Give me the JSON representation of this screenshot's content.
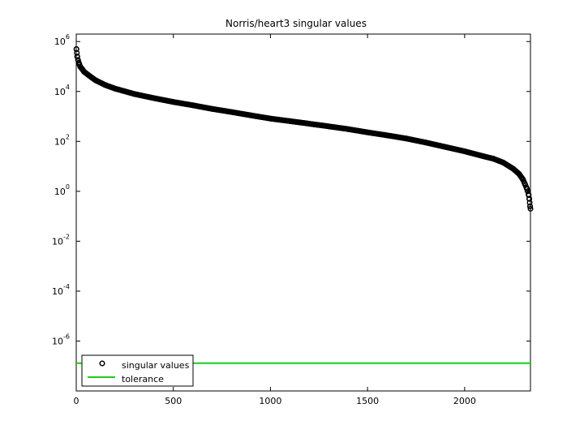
{
  "chart_data": {
    "type": "scatter",
    "title": "Norris/heart3 singular values",
    "xlabel": "",
    "ylabel": "",
    "xlim": [
      0,
      2339
    ],
    "ylim_log10": [
      -8,
      6.3
    ],
    "yscale": "log",
    "grid": false,
    "legend_position": "bottom-left",
    "x_ticks": [
      0,
      500,
      1000,
      1500,
      2000
    ],
    "y_ticks_exponent": [
      6,
      4,
      2,
      0,
      -2,
      -4,
      -6
    ],
    "y_tick_base": "10",
    "series": [
      {
        "name": "singular values",
        "marker": "circle-open",
        "color": "#000000",
        "x": [
          1,
          3,
          5,
          10,
          15,
          20,
          30,
          40,
          60,
          80,
          100,
          150,
          200,
          300,
          400,
          500,
          600,
          700,
          800,
          900,
          1000,
          1100,
          1200,
          1300,
          1400,
          1500,
          1600,
          1700,
          1800,
          1900,
          2000,
          2100,
          2150,
          2200,
          2250,
          2280,
          2300,
          2310,
          2320,
          2325,
          2330,
          2333,
          2335,
          2337,
          2339
        ],
        "y": [
          500000,
          350000,
          250000,
          170000,
          130000,
          100000,
          80000,
          62000,
          47000,
          36000,
          28000,
          18000,
          13000,
          7900,
          5400,
          3800,
          2800,
          2000,
          1500,
          1100,
          820,
          650,
          510,
          400,
          310,
          230,
          175,
          130,
          90,
          60,
          40,
          25,
          20,
          14,
          8,
          5,
          3,
          2,
          1.3,
          1,
          0.7,
          0.5,
          0.35,
          0.25,
          0.2
        ]
      },
      {
        "name": "tolerance",
        "style": "line",
        "color": "#00dd00",
        "x": [
          0,
          2339
        ],
        "y": [
          1.3e-07,
          1.3e-07
        ]
      }
    ]
  }
}
